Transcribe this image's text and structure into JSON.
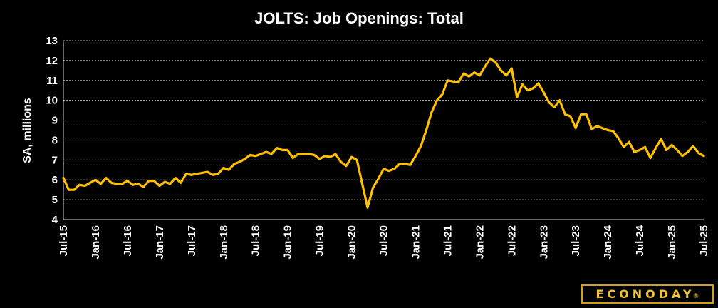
{
  "chart_data": {
    "type": "line",
    "title": "JOLTS: Job Openings: Total",
    "ylabel": "SA, millions",
    "ylim": [
      4,
      13
    ],
    "yticks": [
      4,
      5,
      6,
      7,
      8,
      9,
      10,
      11,
      12,
      13
    ],
    "grid": true,
    "legend": "none",
    "xticks": [
      "Jul-15",
      "Jan-16",
      "Jul-16",
      "Jan-17",
      "Jul-17",
      "Jan-18",
      "Jul-18",
      "Jan-19",
      "Jul-19",
      "Jan-20",
      "Jul-20",
      "Jan-21",
      "Jul-21",
      "Jan-22",
      "Jul-22",
      "Jan-23",
      "Jul-23",
      "Jan-24",
      "Jul-24",
      "Jan-25",
      "Jul-25"
    ],
    "x_start": "Jul-15",
    "x_end": "Jul-25",
    "series": [
      {
        "color": "#ffc000",
        "values": [
          6.1,
          5.5,
          5.5,
          5.75,
          5.7,
          5.85,
          6.0,
          5.8,
          6.1,
          5.85,
          5.8,
          5.8,
          5.95,
          5.75,
          5.8,
          5.65,
          5.95,
          5.95,
          5.7,
          5.9,
          5.8,
          6.1,
          5.85,
          6.3,
          6.25,
          6.3,
          6.35,
          6.4,
          6.25,
          6.3,
          6.6,
          6.5,
          6.8,
          6.9,
          7.05,
          7.25,
          7.2,
          7.3,
          7.4,
          7.3,
          7.6,
          7.5,
          7.5,
          7.1,
          7.3,
          7.3,
          7.3,
          7.25,
          7.05,
          7.2,
          7.15,
          7.3,
          6.9,
          6.7,
          7.15,
          7.0,
          5.8,
          4.6,
          5.6,
          6.05,
          6.55,
          6.45,
          6.55,
          6.8,
          6.8,
          6.75,
          7.2,
          7.7,
          8.5,
          9.4,
          10.0,
          10.3,
          11.0,
          10.95,
          10.9,
          11.35,
          11.2,
          11.4,
          11.25,
          11.7,
          12.1,
          11.9,
          11.5,
          11.25,
          11.6,
          10.15,
          10.8,
          10.5,
          10.6,
          10.85,
          10.4,
          9.9,
          9.65,
          10.0,
          9.3,
          9.2,
          8.6,
          9.3,
          9.3,
          8.55,
          8.7,
          8.6,
          8.5,
          8.45,
          8.1,
          7.65,
          7.9,
          7.4,
          7.5,
          7.65,
          7.1,
          7.6,
          8.05,
          7.5,
          7.75,
          7.5,
          7.2,
          7.4,
          7.7,
          7.35,
          7.2
        ]
      }
    ]
  },
  "brand": {
    "logo_text": "ECONODAY",
    "logo_mark": "®"
  }
}
